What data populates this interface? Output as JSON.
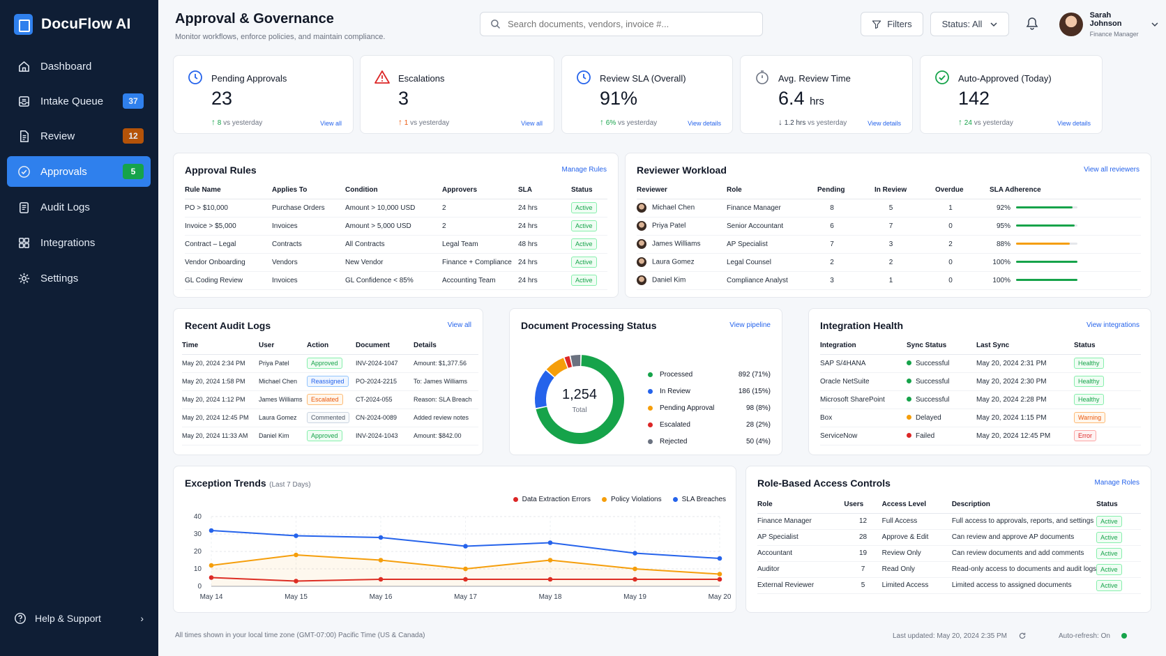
{
  "app": {
    "name": "DocuFlow AI"
  },
  "nav": [
    {
      "label": "Dashboard",
      "icon": "home-icon"
    },
    {
      "label": "Intake Queue",
      "icon": "inbox-icon",
      "badge": "37",
      "badge_color": "#2f80ed"
    },
    {
      "label": "Review",
      "icon": "document-icon",
      "badge": "12",
      "badge_color": "#b45309"
    },
    {
      "label": "Approvals",
      "icon": "check-circle-icon",
      "badge": "5",
      "badge_color": "#16a34a",
      "active": true
    },
    {
      "label": "Audit Logs",
      "icon": "clipboard-icon"
    },
    {
      "label": "Integrations",
      "icon": "grid-icon"
    },
    {
      "label": "Settings",
      "icon": "gear-icon"
    }
  ],
  "help": {
    "label": "Help & Support"
  },
  "header": {
    "title": "Approval & Governance",
    "subtitle": "Monitor workflows, enforce policies, and maintain compliance.",
    "search_placeholder": "Search documents, vendors, invoice #...",
    "filters_label": "Filters",
    "status_label": "Status: All",
    "user_name": "Sarah Johnson",
    "user_role": "Finance Manager"
  },
  "kpis": [
    {
      "label": "Pending Approvals",
      "value": "23",
      "unit": "",
      "delta": "8",
      "delta_text": "vs yesterday",
      "dir": "up",
      "delta_color": "#16a34a",
      "link": "View all",
      "icon": "clock-icon",
      "icon_color": "#2563eb"
    },
    {
      "label": "Escalations",
      "value": "3",
      "unit": "",
      "delta": "1",
      "delta_text": "vs yesterday",
      "dir": "up",
      "delta_color": "#ea580c",
      "link": "View all",
      "icon": "warning-icon",
      "icon_color": "#dc2626"
    },
    {
      "label": "Review SLA (Overall)",
      "value": "91%",
      "unit": "",
      "delta": "6%",
      "delta_text": "vs yesterday",
      "dir": "up",
      "delta_color": "#16a34a",
      "link": "View details",
      "icon": "clock-icon",
      "icon_color": "#2563eb"
    },
    {
      "label": "Avg. Review Time",
      "value": "6.4",
      "unit": "hrs",
      "delta": "1.2 hrs",
      "delta_text": "vs yesterday",
      "dir": "down",
      "delta_color": "#374151",
      "link": "View details",
      "icon": "timer-icon",
      "icon_color": "#6b7280"
    },
    {
      "label": "Auto-Approved (Today)",
      "value": "142",
      "unit": "",
      "delta": "24",
      "delta_text": "vs yesterday",
      "dir": "up",
      "delta_color": "#16a34a",
      "link": "View details",
      "icon": "check-circle-icon",
      "icon_color": "#16a34a"
    }
  ],
  "approval_rules": {
    "title": "Approval Rules",
    "link": "Manage Rules",
    "headers": [
      "Rule Name",
      "Applies To",
      "Condition",
      "Approvers",
      "SLA",
      "Status"
    ],
    "rows": [
      [
        "PO > $10,000",
        "Purchase Orders",
        "Amount > 10,000 USD",
        "2",
        "24 hrs",
        "Active"
      ],
      [
        "Invoice > $5,000",
        "Invoices",
        "Amount > 5,000 USD",
        "2",
        "24 hrs",
        "Active"
      ],
      [
        "Contract – Legal",
        "Contracts",
        "All Contracts",
        "Legal Team",
        "48 hrs",
        "Active"
      ],
      [
        "Vendor Onboarding",
        "Vendors",
        "New Vendor",
        "Finance + Compliance",
        "24 hrs",
        "Active"
      ],
      [
        "GL Coding Review",
        "Invoices",
        "GL Confidence < 85%",
        "Accounting Team",
        "24 hrs",
        "Active"
      ]
    ]
  },
  "reviewer_workload": {
    "title": "Reviewer Workload",
    "link": "View all reviewers",
    "headers": [
      "Reviewer",
      "Role",
      "Pending",
      "In Review",
      "Overdue",
      "SLA Adherence"
    ],
    "rows": [
      {
        "name": "Michael Chen",
        "role": "Finance Manager",
        "pending": "8",
        "in_review": "5",
        "overdue": "1",
        "sla": "92%",
        "sla_value": 0.92,
        "color": "#16a34a"
      },
      {
        "name": "Priya Patel",
        "role": "Senior Accountant",
        "pending": "6",
        "in_review": "7",
        "overdue": "0",
        "sla": "95%",
        "sla_value": 0.95,
        "color": "#16a34a"
      },
      {
        "name": "James Williams",
        "role": "AP Specialist",
        "pending": "7",
        "in_review": "3",
        "overdue": "2",
        "sla": "88%",
        "sla_value": 0.88,
        "color": "#f59e0b"
      },
      {
        "name": "Laura Gomez",
        "role": "Legal Counsel",
        "pending": "2",
        "in_review": "2",
        "overdue": "0",
        "sla": "100%",
        "sla_value": 1.0,
        "color": "#16a34a"
      },
      {
        "name": "Daniel Kim",
        "role": "Compliance Analyst",
        "pending": "3",
        "in_review": "1",
        "overdue": "0",
        "sla": "100%",
        "sla_value": 1.0,
        "color": "#16a34a"
      }
    ]
  },
  "audit_logs": {
    "title": "Recent Audit Logs",
    "link": "View all",
    "headers": [
      "Time",
      "User",
      "Action",
      "Document",
      "Details"
    ],
    "rows": [
      {
        "time": "May 20, 2024 2:34 PM",
        "user": "Priya Patel",
        "action": "Approved",
        "tone": "green",
        "doc": "INV-2024-1047",
        "details": "Amount: $1,377.56"
      },
      {
        "time": "May 20, 2024 1:58 PM",
        "user": "Michael Chen",
        "action": "Reassigned",
        "tone": "blue",
        "doc": "PO-2024-2215",
        "details": "To: James Williams"
      },
      {
        "time": "May 20, 2024 1:12 PM",
        "user": "James Williams",
        "action": "Escalated",
        "tone": "orange",
        "doc": "CT-2024-055",
        "details": "Reason: SLA Breach"
      },
      {
        "time": "May 20, 2024 12:45 PM",
        "user": "Laura Gomez",
        "action": "Commented",
        "tone": "gray",
        "doc": "CN-2024-0089",
        "details": "Added review notes"
      },
      {
        "time": "May 20, 2024 11:33 AM",
        "user": "Daniel Kim",
        "action": "Approved",
        "tone": "green",
        "doc": "INV-2024-1043",
        "details": "Amount: $842.00"
      }
    ]
  },
  "processing": {
    "title": "Document Processing Status",
    "link": "View pipeline",
    "total": "1,254",
    "total_label": "Total",
    "items": [
      {
        "label": "Processed",
        "value": "892 (71%)",
        "count": 892,
        "color": "#16a34a"
      },
      {
        "label": "In Review",
        "value": "186 (15%)",
        "count": 186,
        "color": "#2563eb"
      },
      {
        "label": "Pending Approval",
        "value": "98 (8%)",
        "count": 98,
        "color": "#f59e0b"
      },
      {
        "label": "Escalated",
        "value": "28 (2%)",
        "count": 28,
        "color": "#dc2626"
      },
      {
        "label": "Rejected",
        "value": "50 (4%)",
        "count": 50,
        "color": "#6b7280"
      }
    ]
  },
  "integration_health": {
    "title": "Integration Health",
    "link": "View integrations",
    "headers": [
      "Integration",
      "Sync Status",
      "Last Sync",
      "Status"
    ],
    "rows": [
      {
        "name": "SAP S/4HANA",
        "sync": "Successful",
        "sync_color": "#16a34a",
        "last": "May 20, 2024 2:31 PM",
        "status": "Healthy",
        "tone": "green"
      },
      {
        "name": "Oracle NetSuite",
        "sync": "Successful",
        "sync_color": "#16a34a",
        "last": "May 20, 2024 2:30 PM",
        "status": "Healthy",
        "tone": "green"
      },
      {
        "name": "Microsoft SharePoint",
        "sync": "Successful",
        "sync_color": "#16a34a",
        "last": "May 20, 2024 2:28 PM",
        "status": "Healthy",
        "tone": "green"
      },
      {
        "name": "Box",
        "sync": "Delayed",
        "sync_color": "#f59e0b",
        "last": "May 20, 2024 1:15 PM",
        "status": "Warning",
        "tone": "orange"
      },
      {
        "name": "ServiceNow",
        "sync": "Failed",
        "sync_color": "#dc2626",
        "last": "May 20, 2024 12:45 PM",
        "status": "Error",
        "tone": "red"
      }
    ]
  },
  "exception_trends": {
    "title": "Exception Trends",
    "subtitle": "(Last 7 Days)"
  },
  "chart_data": {
    "type": "line",
    "title": "Exception Trends",
    "subtitle": "(Last 7 Days)",
    "x": [
      "May 14",
      "May 15",
      "May 16",
      "May 17",
      "May 18",
      "May 19",
      "May 20"
    ],
    "ylim": [
      0,
      40
    ],
    "yticks": [
      0,
      10,
      20,
      30,
      40
    ],
    "grid": true,
    "legend": "top-right",
    "series": [
      {
        "name": "Data Extraction Errors",
        "color": "#dc2626",
        "values": [
          5,
          3,
          4,
          4,
          4,
          4,
          4
        ]
      },
      {
        "name": "Policy Violations",
        "color": "#f59e0b",
        "values": [
          12,
          18,
          15,
          10,
          15,
          10,
          7
        ]
      },
      {
        "name": "SLA Breaches",
        "color": "#2563eb",
        "values": [
          32,
          29,
          28,
          23,
          25,
          19,
          16
        ]
      }
    ]
  },
  "rbac": {
    "title": "Role-Based Access Controls",
    "link": "Manage Roles",
    "headers": [
      "Role",
      "Users",
      "Access Level",
      "Description",
      "Status"
    ],
    "rows": [
      [
        "Finance Manager",
        "12",
        "Full Access",
        "Full access to approvals, reports, and settings",
        "Active"
      ],
      [
        "AP Specialist",
        "28",
        "Approve & Edit",
        "Can review and approve AP documents",
        "Active"
      ],
      [
        "Accountant",
        "19",
        "Review Only",
        "Can review documents and add comments",
        "Active"
      ],
      [
        "Auditor",
        "7",
        "Read Only",
        "Read-only access to documents and audit logs",
        "Active"
      ],
      [
        "External Reviewer",
        "5",
        "Limited Access",
        "Limited access to assigned documents",
        "Active"
      ]
    ]
  },
  "footer": {
    "timezone": "All times shown in your local time zone (GMT-07:00) Pacific Time (US & Canada)",
    "last_updated": "Last updated: May 20, 2024 2:35 PM",
    "auto_refresh": "Auto-refresh: On"
  }
}
